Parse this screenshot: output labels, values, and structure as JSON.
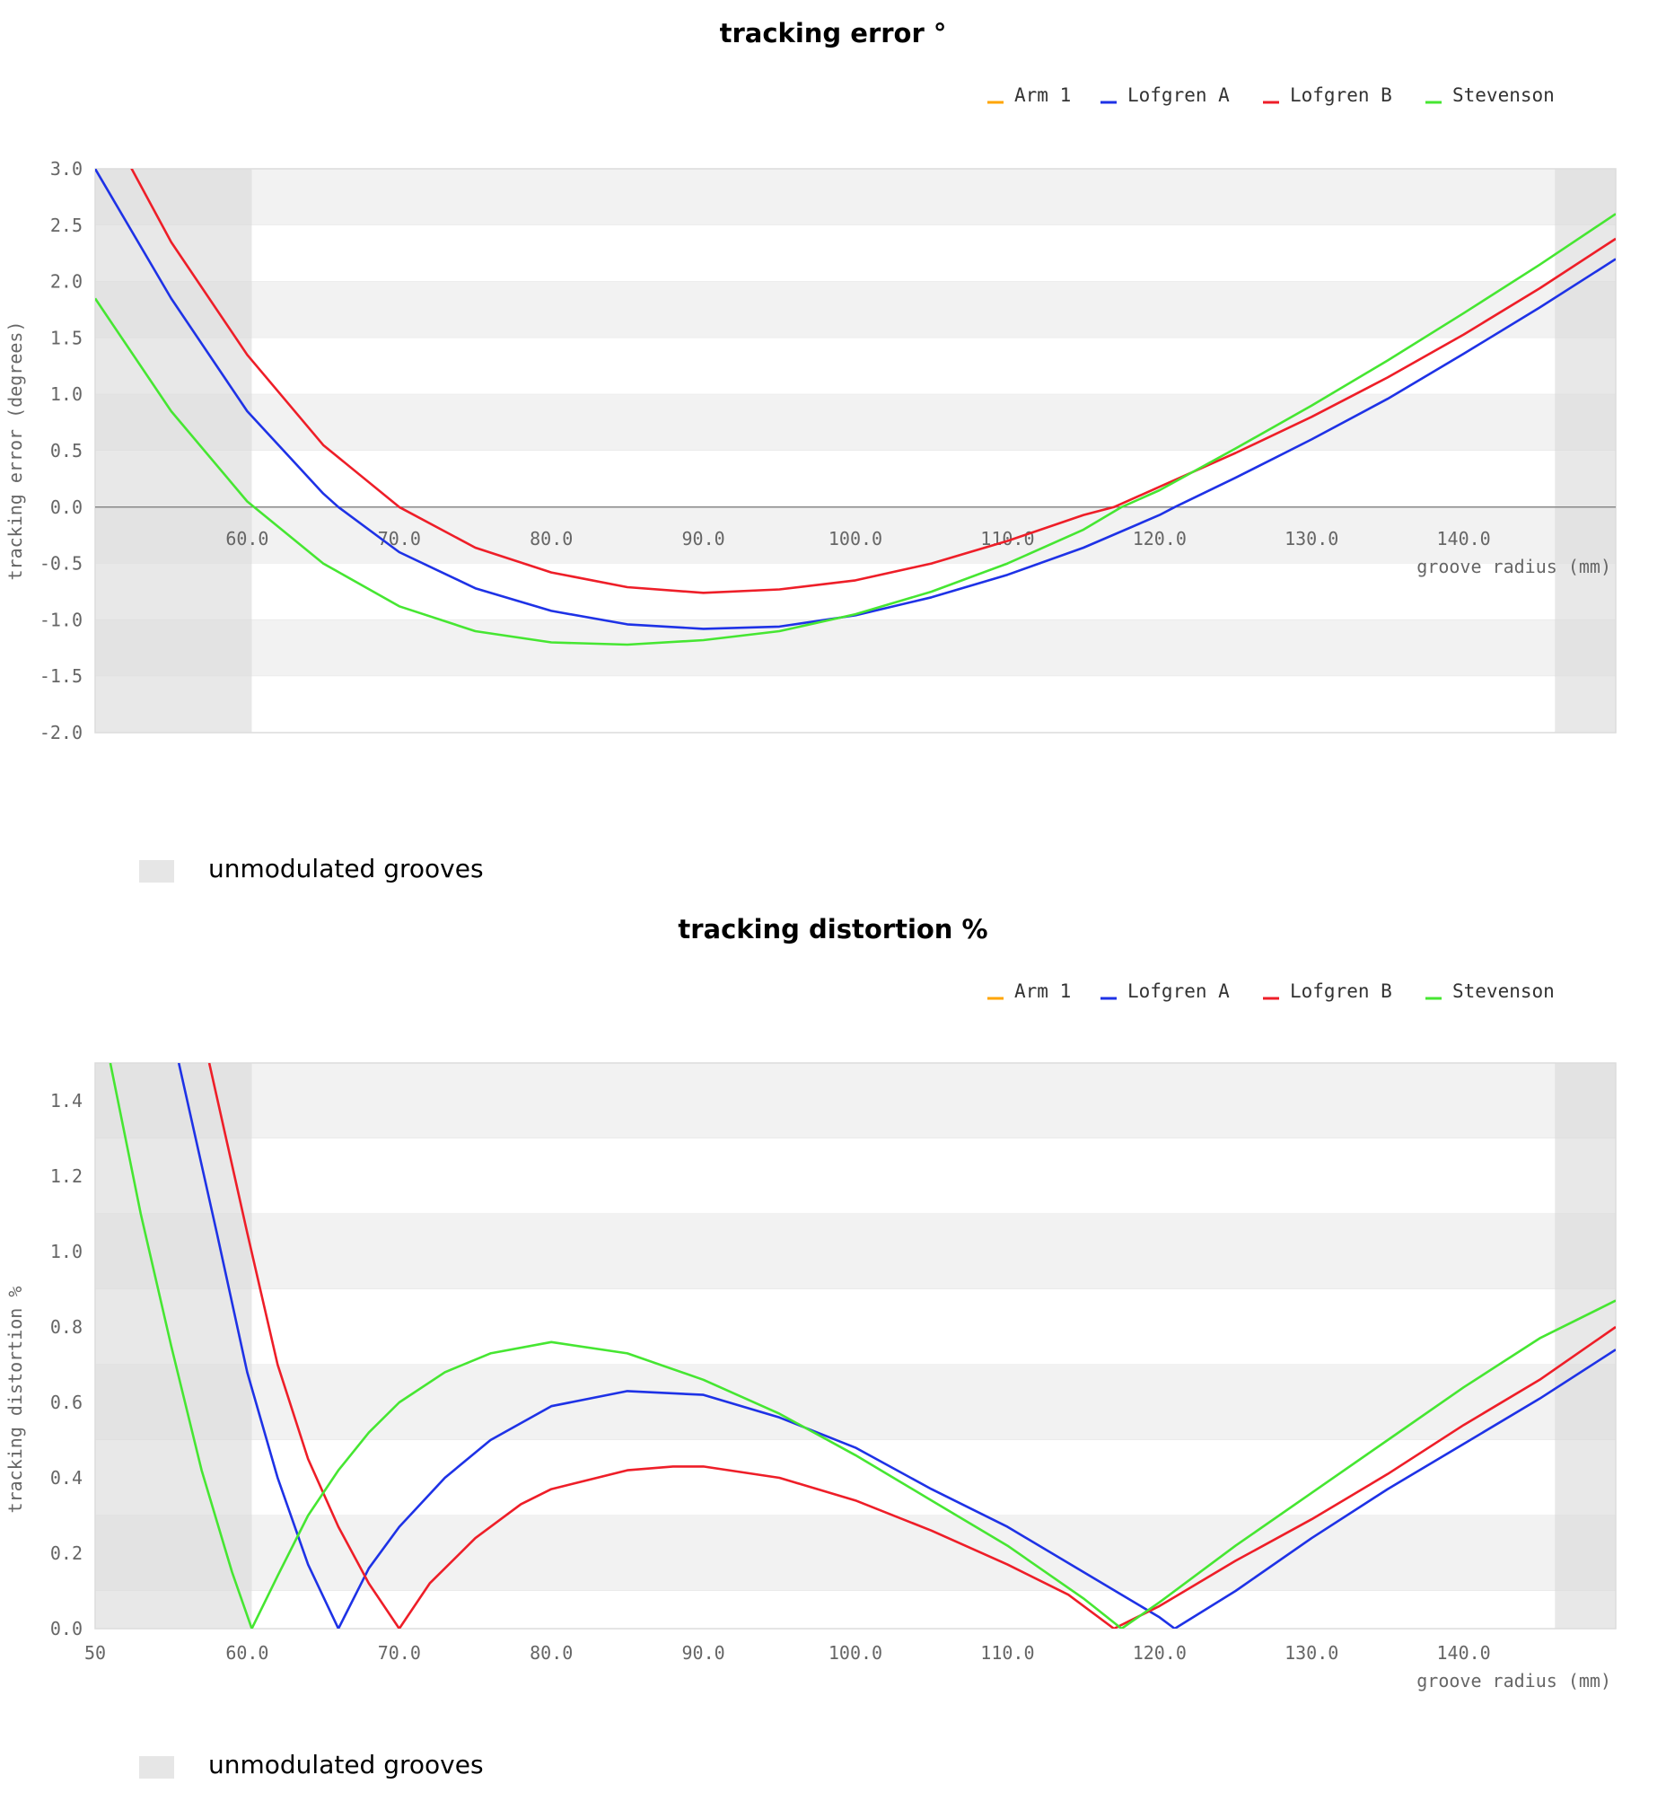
{
  "legend": {
    "swatch_color": "#e6e6e6",
    "label": "unmodulated grooves"
  },
  "series_colors": {
    "Arm 1": "#ffa500",
    "Lofgren A": "#1e32e6",
    "Lofgren B": "#ee1e28",
    "Stevenson": "#46e632"
  },
  "chart_data": [
    {
      "type": "line",
      "title": "tracking error °",
      "xlabel": "groove radius (mm)",
      "ylabel": "tracking error (degrees)",
      "xlim": [
        50,
        150
      ],
      "ylim": [
        -2.0,
        3.0
      ],
      "x_ticks": [
        "60.0",
        "70.0",
        "80.0",
        "90.0",
        "100.0",
        "110.0",
        "120.0",
        "130.0",
        "140.0"
      ],
      "y_ticks": [
        "3.0",
        "2.5",
        "2.0",
        "1.5",
        "1.0",
        "0.5",
        "0.0",
        "-0.5",
        "-1.0",
        "-1.5",
        "-2.0"
      ],
      "unmodulated_regions": [
        [
          50,
          60.3
        ],
        [
          146,
          150
        ]
      ],
      "legend_entries": [
        "Arm 1",
        "Lofgren A",
        "Lofgren B",
        "Stevenson"
      ],
      "series": [
        {
          "name": "Arm 1",
          "x": [],
          "y": []
        },
        {
          "name": "Lofgren A",
          "x": [
            50,
            55,
            60,
            65,
            66,
            70,
            75,
            80,
            85,
            90,
            95,
            100,
            105,
            110,
            115,
            120,
            121,
            125,
            130,
            135,
            140,
            145,
            150
          ],
          "y": [
            3.0,
            1.85,
            0.85,
            0.12,
            0.0,
            -0.4,
            -0.72,
            -0.92,
            -1.04,
            -1.08,
            -1.06,
            -0.96,
            -0.8,
            -0.6,
            -0.36,
            -0.07,
            0.0,
            0.26,
            0.6,
            0.96,
            1.36,
            1.77,
            2.2
          ]
        },
        {
          "name": "Lofgren B",
          "x": [
            50,
            55,
            60,
            65,
            70,
            75,
            80,
            85,
            90,
            95,
            100,
            105,
            110,
            115,
            117,
            120,
            125,
            130,
            135,
            140,
            145,
            150
          ],
          "y": [
            3.6,
            2.35,
            1.35,
            0.55,
            0.0,
            -0.36,
            -0.58,
            -0.71,
            -0.76,
            -0.73,
            -0.65,
            -0.5,
            -0.3,
            -0.07,
            0.0,
            0.18,
            0.48,
            0.8,
            1.15,
            1.53,
            1.94,
            2.38
          ]
        },
        {
          "name": "Stevenson",
          "x": [
            50,
            55,
            60,
            65,
            70,
            75,
            80,
            85,
            90,
            95,
            100,
            105,
            110,
            115,
            117.5,
            120,
            125,
            130,
            135,
            140,
            145,
            150
          ],
          "y": [
            1.85,
            0.85,
            0.05,
            -0.5,
            -0.88,
            -1.1,
            -1.2,
            -1.22,
            -1.18,
            -1.1,
            -0.95,
            -0.75,
            -0.5,
            -0.2,
            0.0,
            0.15,
            0.52,
            0.9,
            1.3,
            1.72,
            2.15,
            2.6
          ]
        }
      ]
    },
    {
      "type": "line",
      "title": "tracking distortion %",
      "xlabel": "groove radius (mm)",
      "ylabel": "tracking distortion %",
      "xlim": [
        50,
        150
      ],
      "ylim": [
        0.0,
        1.5
      ],
      "x_ticks": [
        "50",
        "60.0",
        "70.0",
        "80.0",
        "90.0",
        "100.0",
        "110.0",
        "120.0",
        "130.0",
        "140.0"
      ],
      "y_ticks": [
        "1.4",
        "1.2",
        "1.0",
        "0.8",
        "0.6",
        "0.4",
        "0.2",
        "0.0"
      ],
      "unmodulated_regions": [
        [
          50,
          60.3
        ],
        [
          146,
          150
        ]
      ],
      "legend_entries": [
        "Arm 1",
        "Lofgren A",
        "Lofgren B",
        "Stevenson"
      ],
      "series": [
        {
          "name": "Arm 1",
          "x": [],
          "y": []
        },
        {
          "name": "Lofgren A",
          "x": [
            55.5,
            58,
            60,
            62,
            64,
            66,
            68,
            70,
            73,
            76,
            80,
            85,
            90,
            95,
            100,
            105,
            110,
            115,
            120,
            121,
            125,
            130,
            135,
            140,
            145,
            150
          ],
          "y": [
            1.5,
            1.05,
            0.68,
            0.4,
            0.17,
            0.0,
            0.16,
            0.27,
            0.4,
            0.5,
            0.59,
            0.63,
            0.62,
            0.56,
            0.48,
            0.37,
            0.27,
            0.15,
            0.03,
            0.0,
            0.1,
            0.24,
            0.37,
            0.49,
            0.61,
            0.74
          ]
        },
        {
          "name": "Lofgren B",
          "x": [
            57.5,
            60,
            62,
            64,
            66,
            68,
            70,
            72,
            75,
            78,
            80,
            85,
            88,
            90,
            95,
            100,
            105,
            110,
            114,
            117,
            120,
            125,
            130,
            135,
            140,
            145,
            150
          ],
          "y": [
            1.5,
            1.05,
            0.7,
            0.45,
            0.27,
            0.12,
            0.0,
            0.12,
            0.24,
            0.33,
            0.37,
            0.42,
            0.43,
            0.43,
            0.4,
            0.34,
            0.26,
            0.17,
            0.09,
            0.0,
            0.06,
            0.18,
            0.29,
            0.41,
            0.54,
            0.66,
            0.8
          ]
        },
        {
          "name": "Stevenson",
          "x": [
            51,
            53,
            55,
            57,
            59,
            60.3,
            62,
            64,
            66,
            68,
            70,
            73,
            76,
            80,
            85,
            90,
            95,
            100,
            105,
            110,
            115,
            117.5,
            120,
            125,
            130,
            135,
            140,
            145,
            150
          ],
          "y": [
            1.5,
            1.1,
            0.75,
            0.42,
            0.15,
            0.0,
            0.14,
            0.3,
            0.42,
            0.52,
            0.6,
            0.68,
            0.73,
            0.76,
            0.73,
            0.66,
            0.57,
            0.46,
            0.34,
            0.22,
            0.08,
            0.0,
            0.07,
            0.22,
            0.36,
            0.5,
            0.64,
            0.77,
            0.87
          ]
        }
      ]
    }
  ]
}
